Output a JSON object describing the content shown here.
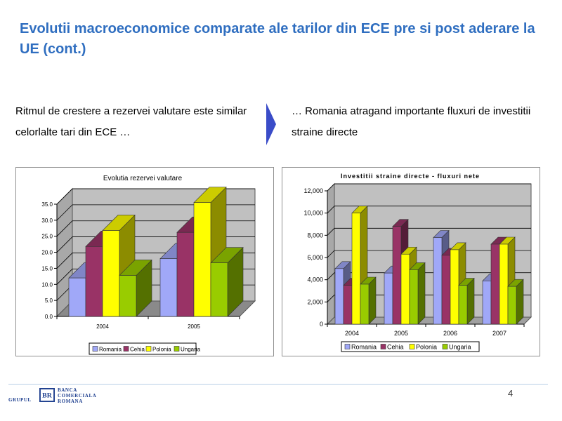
{
  "slide": {
    "title": "Evolutii macroeconomice comparate ale tarilor din ECE pre si post aderare la UE (cont.)",
    "intro_left": "Ritmul de crestere a rezervei valutare este similar celorlalte tari din ECE …",
    "intro_right": "… Romania atragand importante fluxuri de investitii straine directe",
    "page_number": "4",
    "logo": {
      "group": "GRUPUL",
      "lines": [
        "BANCA",
        "COMERCIALA",
        "ROMANA"
      ]
    }
  },
  "colors": {
    "title": "#2f6ec0",
    "arrow": "#3a4cc8",
    "romania": "#a0a8f8",
    "cehia": "#993366",
    "polonia": "#ffff00",
    "ungaria": "#99cc00",
    "plot_wall": "#c0c0c0"
  },
  "chart_data": [
    {
      "type": "bar",
      "title": "Evolutia rezervei valutare",
      "categories": [
        "2004",
        "2005"
      ],
      "series": [
        {
          "name": "Romania",
          "values": [
            12.0,
            18.0
          ]
        },
        {
          "name": "Cehia",
          "values": [
            21.8,
            26.2
          ]
        },
        {
          "name": "Polonia",
          "values": [
            26.8,
            35.5
          ]
        },
        {
          "name": "Ungaria",
          "values": [
            12.8,
            16.7
          ]
        }
      ],
      "ylim": [
        0,
        35
      ],
      "yticks": [
        "0.0",
        "5.0",
        "10.0",
        "15.0",
        "20.0",
        "25.0",
        "30.0",
        "35.0"
      ],
      "xlabel": "",
      "ylabel": "",
      "grid": true,
      "legend": "bottom"
    },
    {
      "type": "bar",
      "title": "Investitii straine directe - fluxuri nete",
      "categories": [
        "2004",
        "2005",
        "2006",
        "2007"
      ],
      "series": [
        {
          "name": "Romania",
          "values": [
            5000,
            4600,
            7800,
            3900
          ]
        },
        {
          "name": "Cehia",
          "values": [
            3500,
            8800,
            6200,
            7200
          ]
        },
        {
          "name": "Polonia",
          "values": [
            10000,
            6300,
            6700,
            7200
          ]
        },
        {
          "name": "Ungaria",
          "values": [
            3600,
            4900,
            3500,
            3400
          ]
        }
      ],
      "ylim": [
        0,
        12000
      ],
      "yticks": [
        "0",
        "2,000",
        "4,000",
        "6,000",
        "8,000",
        "10,000",
        "12,000"
      ],
      "xlabel": "",
      "ylabel": "",
      "grid": true,
      "legend": "bottom"
    }
  ]
}
